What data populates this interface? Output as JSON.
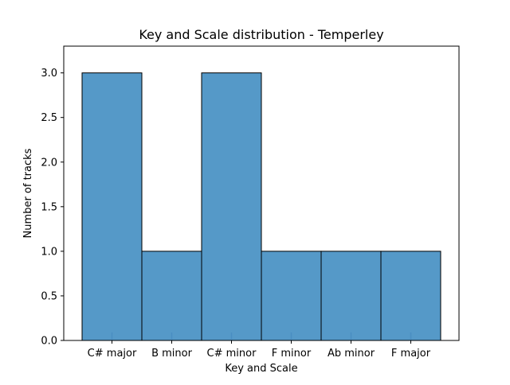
{
  "chart_data": {
    "type": "bar",
    "title": "Key and Scale distribution - Temperley",
    "xlabel": "Key and Scale",
    "ylabel": "Number of tracks",
    "categories": [
      "C# major",
      "B minor",
      "C# minor",
      "F minor",
      "Ab minor",
      "F major"
    ],
    "values": [
      3,
      1,
      3,
      1,
      1,
      1
    ],
    "ylim": [
      0,
      3.3
    ],
    "yticks": [
      0.0,
      0.5,
      1.0,
      1.5,
      2.0,
      2.5,
      3.0
    ],
    "ytick_labels": [
      "0.0",
      "0.5",
      "1.0",
      "1.5",
      "2.0",
      "2.5",
      "3.0"
    ],
    "bar_color": "#5599c8",
    "bar_edge_color": "#000000",
    "rug_color": "#4a8ec2",
    "grid": false,
    "legend": "none"
  }
}
